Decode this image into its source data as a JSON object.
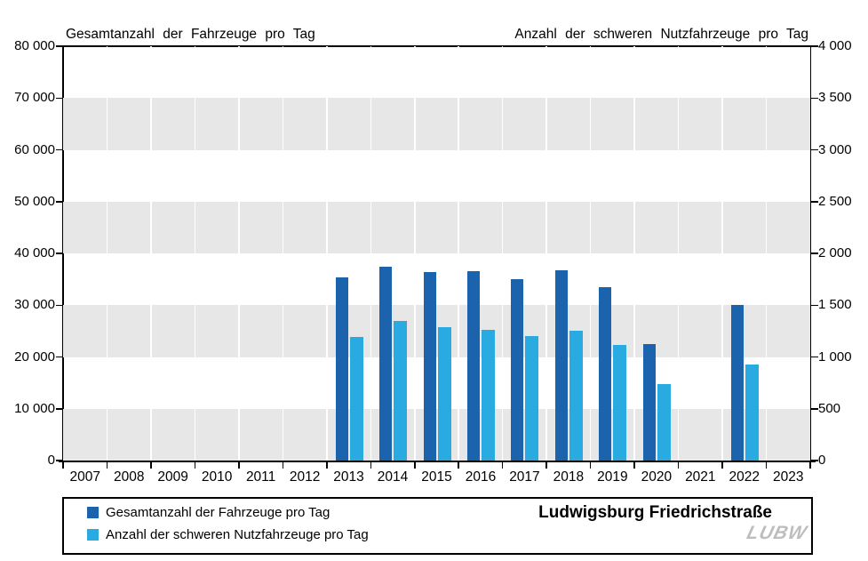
{
  "colors": {
    "total_series": "#1C63AE",
    "heavy_series": "#29ABE2",
    "stripe": "#E7E7E7",
    "axis": "#000000",
    "logo_gray": "#BDBDBD"
  },
  "footer": {
    "station": "Ludwigsburg Friedrichstraße",
    "logo": "LUBW"
  },
  "chart_data": {
    "type": "bar",
    "title_left": "Gesamtanzahl der Fahrzeuge pro Tag",
    "title_right": "Anzahl der schweren Nutzfahrzeuge pro Tag",
    "categories": [
      "2007",
      "2008",
      "2009",
      "2010",
      "2011",
      "2012",
      "2013",
      "2014",
      "2015",
      "2016",
      "2017",
      "2018",
      "2019",
      "2020",
      "2021",
      "2022",
      "2023"
    ],
    "series": [
      {
        "name": "Gesamtanzahl der Fahrzeuge pro Tag",
        "axis": "left",
        "values": [
          null,
          null,
          null,
          null,
          null,
          null,
          35300,
          37500,
          36400,
          36500,
          35000,
          36700,
          33400,
          22500,
          null,
          30100,
          null
        ]
      },
      {
        "name": "Anzahl der schweren Nutzfahrzeuge pro Tag",
        "axis": "right",
        "values": [
          null,
          null,
          null,
          null,
          null,
          null,
          1190,
          1350,
          1290,
          1260,
          1200,
          1250,
          1120,
          740,
          null,
          930,
          null
        ]
      }
    ],
    "axes": {
      "left": {
        "min": 0,
        "max": 80000,
        "tick_step": 10000,
        "tick_labels": [
          "0",
          "10 000",
          "20 000",
          "30 000",
          "40 000",
          "50 000",
          "60 000",
          "70 000",
          "80 000"
        ]
      },
      "right": {
        "min": 0,
        "max": 4000,
        "tick_step": 500,
        "tick_labels": [
          "0",
          "500",
          "1 000",
          "1 500",
          "2 000",
          "2 500",
          "3 000",
          "3 500",
          "4 000"
        ]
      }
    },
    "grid": "horizontal gray stripes every 10000 (left axis), starting gray at 0-10000",
    "legend_position": "bottom-left box"
  }
}
